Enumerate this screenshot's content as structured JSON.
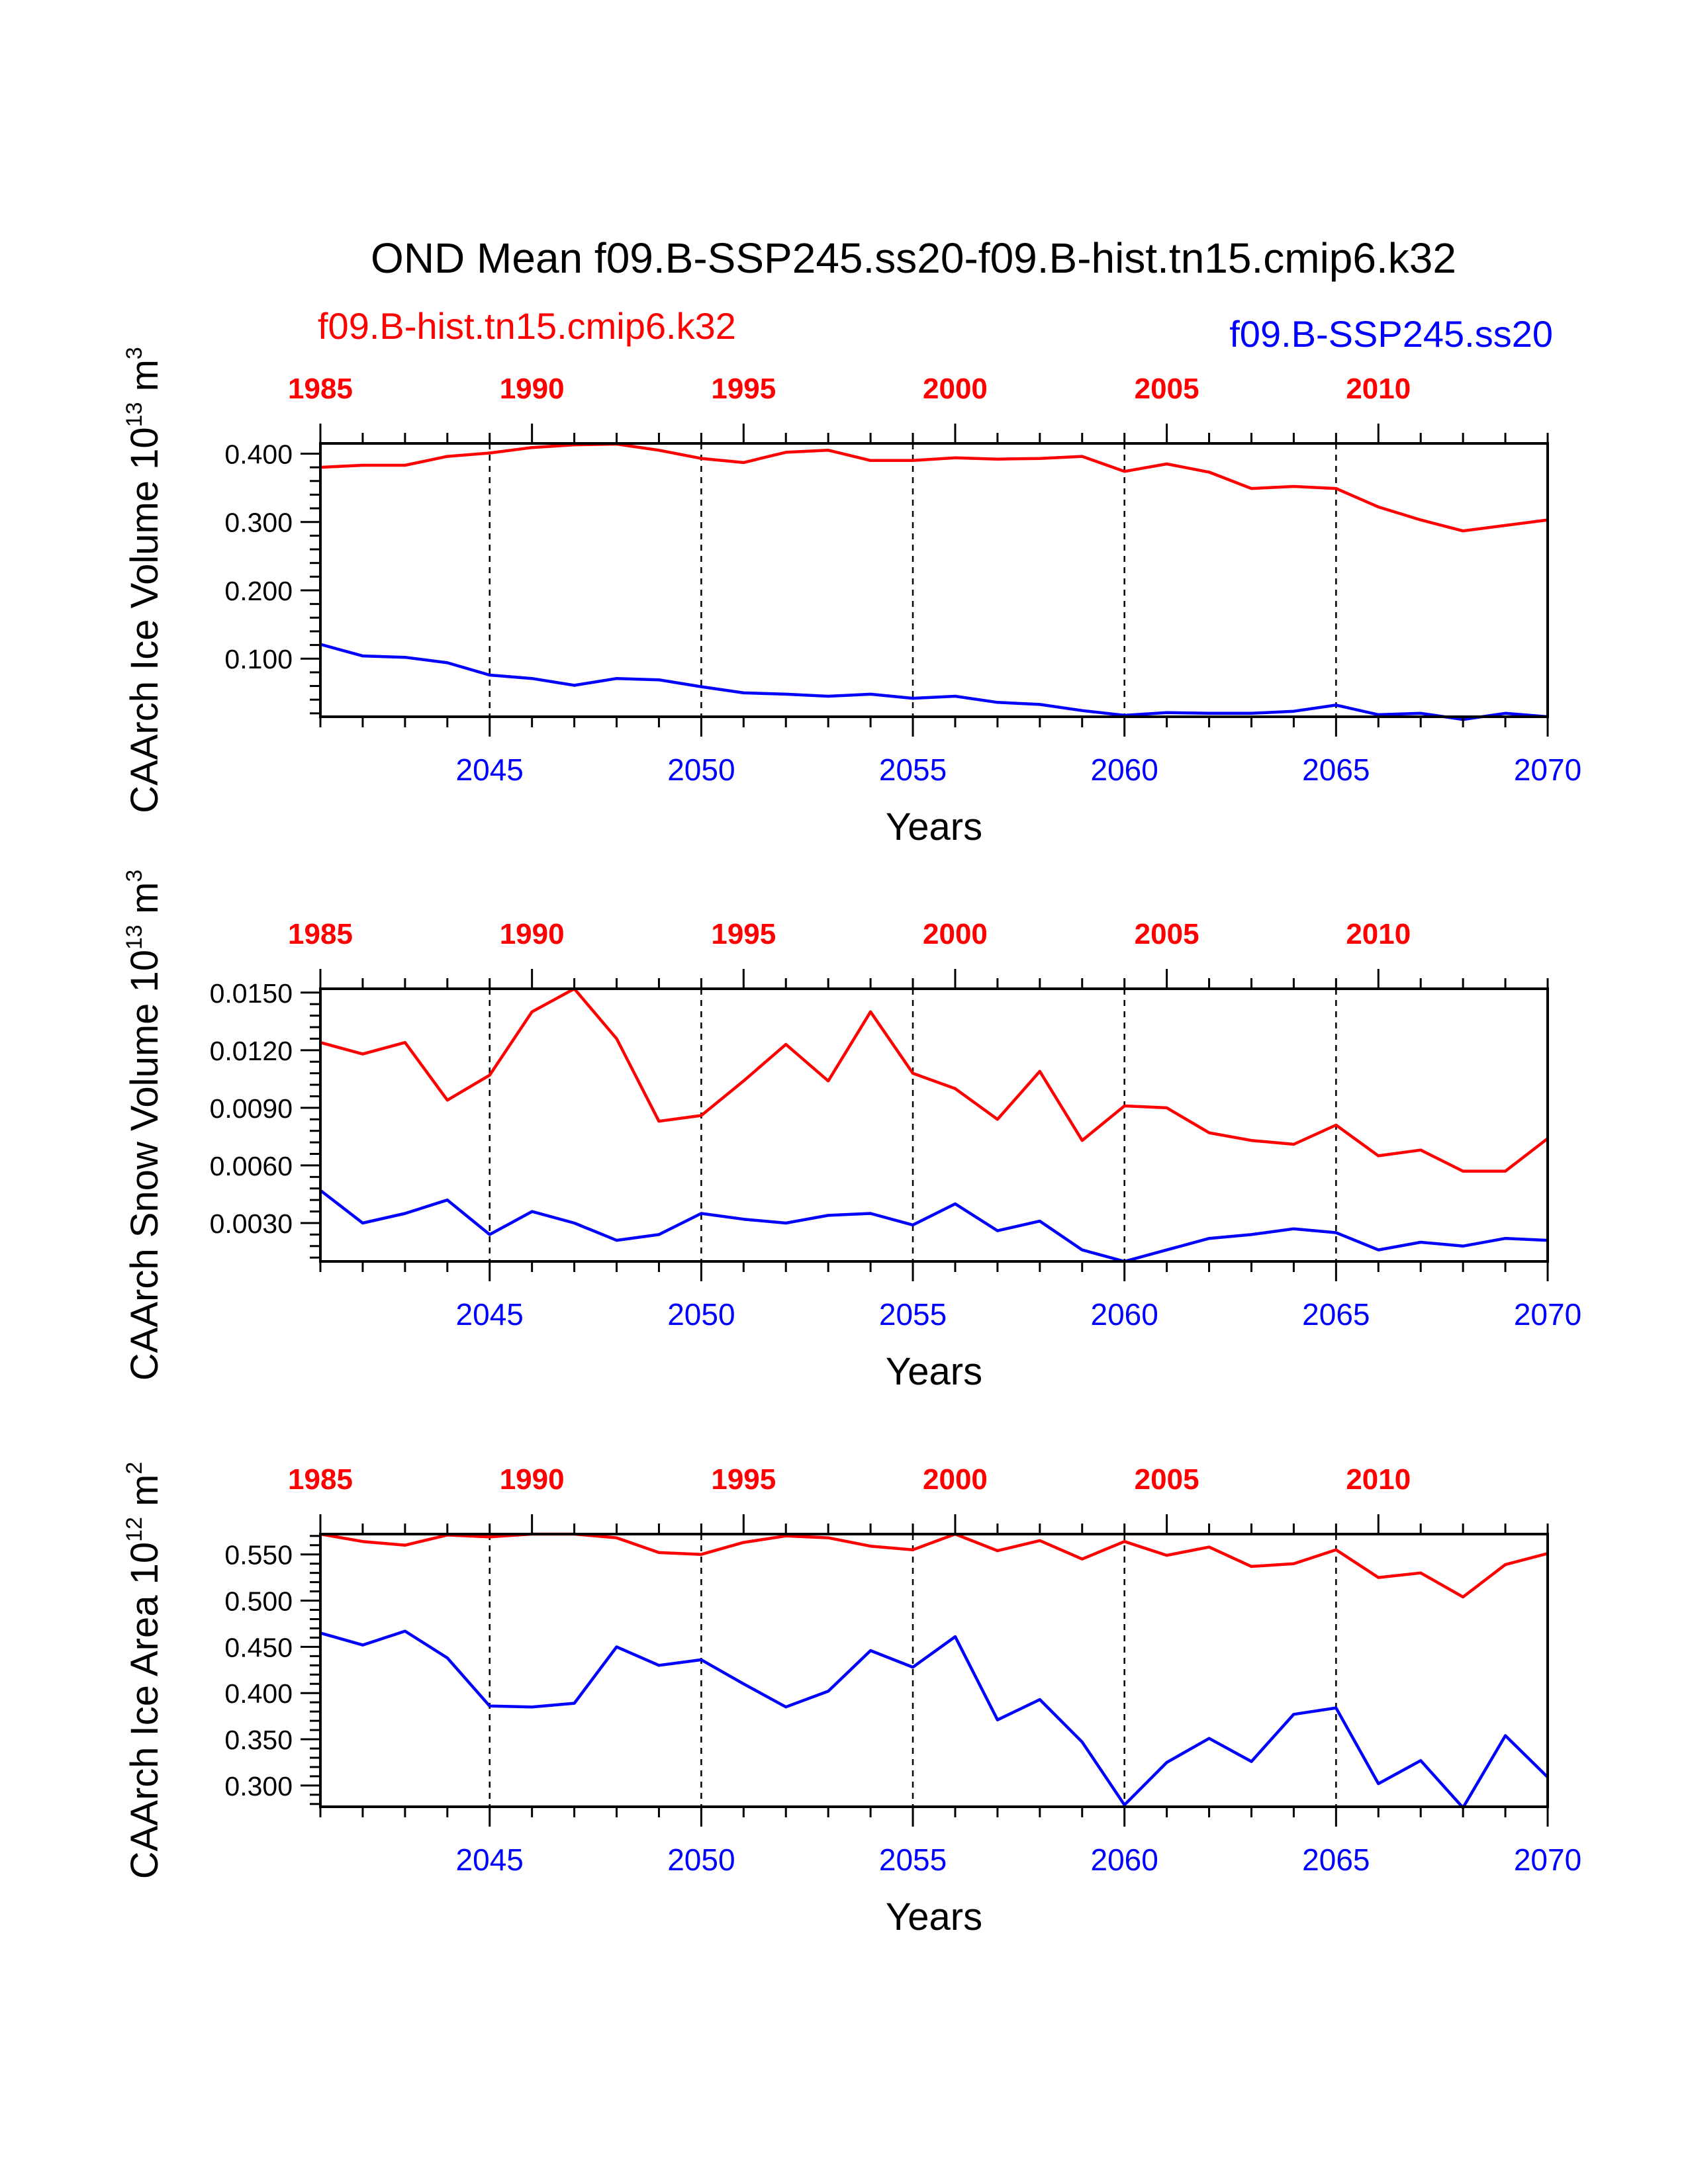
{
  "chart_data": {
    "type": "line",
    "title": "OND Mean f09.B-SSP245.ss20-f09.B-hist.tn15.cmip6.k32",
    "legend": {
      "left": {
        "label": "f09.B-hist.tn15.cmip6.k32",
        "color": "#ff0000"
      },
      "right": {
        "label": "f09.B-SSP245.ss20",
        "color": "#0000ff"
      }
    },
    "colors": {
      "hist": "#ff0000",
      "ssp": "#0000ff",
      "axis": "#000000"
    },
    "panels": [
      {
        "ylabel": {
          "main": "CAArch Ice Volume 10",
          "exp": "13",
          "unit": " m",
          "unit_exp": "3"
        },
        "xlabel": "Years",
        "ylim": [
          0.015,
          0.415
        ],
        "yticks": [
          0.1,
          0.2,
          0.3,
          0.4
        ],
        "ytick_labels": [
          "0.100",
          "0.200",
          "0.300",
          "0.400"
        ],
        "series": [
          {
            "name": "f09.B-hist.tn15.cmip6.k32",
            "color": "#ff0000",
            "values": [
              0.38,
              0.383,
              0.383,
              0.396,
              0.401,
              0.409,
              0.413,
              0.414,
              0.405,
              0.393,
              0.387,
              0.402,
              0.405,
              0.39,
              0.39,
              0.394,
              0.392,
              0.393,
              0.396,
              0.374,
              0.385,
              0.373,
              0.349,
              0.352,
              0.349,
              0.322,
              0.303,
              0.287,
              0.295,
              0.303
            ]
          },
          {
            "name": "f09.B-SSP245.ss20",
            "color": "#0000ff",
            "values": [
              0.121,
              0.104,
              0.102,
              0.094,
              0.076,
              0.071,
              0.061,
              0.071,
              0.069,
              0.059,
              0.05,
              0.048,
              0.045,
              0.048,
              0.042,
              0.045,
              0.036,
              0.033,
              0.024,
              0.017,
              0.021,
              0.02,
              0.02,
              0.023,
              0.032,
              0.018,
              0.02,
              0.011,
              0.02,
              0.015
            ]
          }
        ]
      },
      {
        "ylabel": {
          "main": "CAArch Snow Volume 10",
          "exp": "13",
          "unit": " m",
          "unit_exp": "3"
        },
        "xlabel": "Years",
        "ylim": [
          0.001,
          0.0152
        ],
        "yticks": [
          0.003,
          0.006,
          0.009,
          0.012,
          0.015
        ],
        "ytick_labels": [
          "0.0030",
          "0.0060",
          "0.0090",
          "0.0120",
          "0.0150"
        ],
        "series": [
          {
            "name": "f09.B-hist.tn15.cmip6.k32",
            "color": "#ff0000",
            "values": [
              0.0124,
              0.0118,
              0.0124,
              0.0094,
              0.0107,
              0.014,
              0.0152,
              0.0126,
              0.0083,
              0.0086,
              0.0104,
              0.0123,
              0.0104,
              0.014,
              0.0108,
              0.01,
              0.0084,
              0.0109,
              0.0073,
              0.0091,
              0.009,
              0.0077,
              0.0073,
              0.0071,
              0.0081,
              0.0065,
              0.0068,
              0.0057,
              0.0057,
              0.0074
            ]
          },
          {
            "name": "f09.B-SSP245.ss20",
            "color": "#0000ff",
            "values": [
              0.0047,
              0.003,
              0.0035,
              0.0042,
              0.0024,
              0.0036,
              0.003,
              0.0021,
              0.0024,
              0.0035,
              0.0032,
              0.003,
              0.0034,
              0.0035,
              0.0029,
              0.004,
              0.0026,
              0.0031,
              0.0016,
              0.001,
              0.0016,
              0.0022,
              0.0024,
              0.0027,
              0.0025,
              0.0016,
              0.002,
              0.0018,
              0.0022,
              0.0021
            ]
          }
        ]
      },
      {
        "ylabel": {
          "main": "CAArch Ice Area 10",
          "exp": "12",
          "unit": " m",
          "unit_exp": "2"
        },
        "xlabel": "Years",
        "ylim": [
          0.277,
          0.572
        ],
        "yticks": [
          0.3,
          0.35,
          0.4,
          0.45,
          0.5,
          0.55
        ],
        "ytick_labels": [
          "0.300",
          "0.350",
          "0.400",
          "0.450",
          "0.500",
          "0.550"
        ],
        "series": [
          {
            "name": "f09.B-hist.tn15.cmip6.k32",
            "color": "#ff0000",
            "values": [
              0.572,
              0.564,
              0.56,
              0.571,
              0.569,
              0.572,
              0.572,
              0.568,
              0.552,
              0.55,
              0.563,
              0.57,
              0.568,
              0.559,
              0.555,
              0.572,
              0.554,
              0.565,
              0.545,
              0.564,
              0.549,
              0.558,
              0.537,
              0.54,
              0.555,
              0.525,
              0.53,
              0.504,
              0.539,
              0.551
            ]
          },
          {
            "name": "f09.B-SSP245.ss20",
            "color": "#0000ff",
            "values": [
              0.465,
              0.452,
              0.467,
              0.438,
              0.386,
              0.385,
              0.389,
              0.45,
              0.43,
              0.436,
              0.41,
              0.385,
              0.402,
              0.446,
              0.428,
              0.461,
              0.371,
              0.393,
              0.347,
              0.279,
              0.325,
              0.351,
              0.326,
              0.377,
              0.384,
              0.302,
              0.327,
              0.276,
              0.354,
              0.309
            ]
          }
        ]
      }
    ],
    "x_bottom": {
      "years": [
        2041,
        2042,
        2043,
        2044,
        2045,
        2046,
        2047,
        2048,
        2049,
        2050,
        2051,
        2052,
        2053,
        2054,
        2055,
        2056,
        2057,
        2058,
        2059,
        2060,
        2061,
        2062,
        2063,
        2064,
        2065,
        2066,
        2067,
        2068,
        2069,
        2070
      ],
      "tick_labels": [
        "2045",
        "2050",
        "2055",
        "2060",
        "2065",
        "2070"
      ],
      "tick_values": [
        2045,
        2050,
        2055,
        2060,
        2065,
        2070
      ]
    },
    "x_top": {
      "tick_labels": [
        "1985",
        "1990",
        "1995",
        "2000",
        "2005",
        "2010"
      ],
      "tick_values_bottom_axis": [
        2041,
        2046,
        2051,
        2056,
        2061,
        2066
      ]
    },
    "dashed_gridlines_at": [
      2045,
      2050,
      2055,
      2060,
      2065
    ],
    "grid": false
  }
}
